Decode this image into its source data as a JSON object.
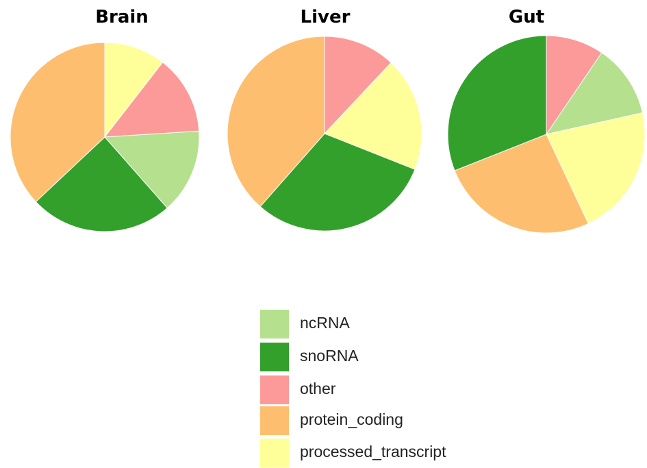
{
  "colors": {
    "ncRNA": "#b5e08d",
    "snoRNA": "#33a02c",
    "other": "#fb9a99",
    "protein_coding": "#fdbf6f",
    "processed_transcript": "#ffff99"
  },
  "chart_data": [
    {
      "type": "pie",
      "title": "Brain",
      "slices": [
        {
          "category": "processed_transcript",
          "value": 10.5
        },
        {
          "category": "other",
          "value": 13.5
        },
        {
          "category": "ncRNA",
          "value": 14.5
        },
        {
          "category": "snoRNA",
          "value": 24.5
        },
        {
          "category": "protein_coding",
          "value": 37.0
        }
      ]
    },
    {
      "type": "pie",
      "title": "Liver",
      "slices": [
        {
          "category": "other",
          "value": 12.0
        },
        {
          "category": "processed_transcript",
          "value": 19.0
        },
        {
          "category": "snoRNA",
          "value": 30.5
        },
        {
          "category": "protein_coding",
          "value": 38.5
        }
      ]
    },
    {
      "type": "pie",
      "title": "Gut",
      "slices": [
        {
          "category": "other",
          "value": 9.5
        },
        {
          "category": "ncRNA",
          "value": 12.0
        },
        {
          "category": "processed_transcript",
          "value": 21.5
        },
        {
          "category": "protein_coding",
          "value": 26.0
        },
        {
          "category": "snoRNA",
          "value": 31.0
        }
      ]
    }
  ],
  "legend": {
    "items": [
      {
        "key": "ncRNA",
        "label": "ncRNA"
      },
      {
        "key": "snoRNA",
        "label": "snoRNA"
      },
      {
        "key": "other",
        "label": "other"
      },
      {
        "key": "protein_coding",
        "label": "protein_coding"
      },
      {
        "key": "processed_transcript",
        "label": "processed_transcript"
      }
    ]
  }
}
